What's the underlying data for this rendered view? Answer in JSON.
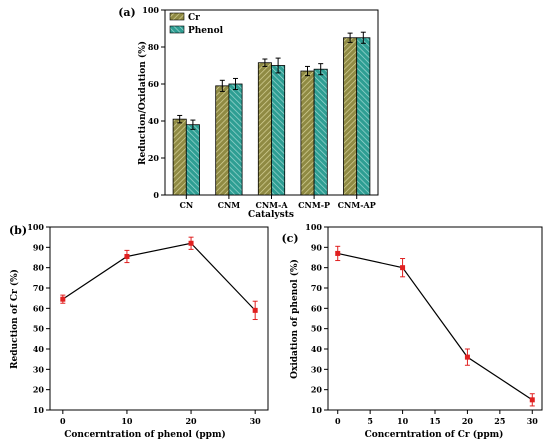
{
  "colors": {
    "cr_bar": "#8f8a43",
    "phenol_bar": "#2e9e93",
    "line": "#000000",
    "marker": "#e02020",
    "errorbar": "#e02020"
  },
  "chart_data": [
    {
      "type": "bar",
      "panel_label": "(a)",
      "categories": [
        "CN",
        "CNM",
        "CNM-A",
        "CNM-P",
        "CNM-AP"
      ],
      "series": [
        {
          "name": "Cr",
          "values": [
            41,
            59,
            71.5,
            67,
            85
          ],
          "errors": [
            2,
            3,
            2,
            2.5,
            2.5
          ]
        },
        {
          "name": "Phenol",
          "values": [
            38,
            60,
            70,
            68,
            85
          ],
          "errors": [
            2.5,
            3,
            4,
            3,
            3
          ]
        }
      ],
      "xlabel": "Catalysts",
      "ylabel": "Reduction/Oxidation (%)",
      "ylim": [
        0,
        100
      ],
      "yticks": [
        "0",
        "20",
        "40",
        "60",
        "80",
        "100"
      ],
      "legend_position": "top-left",
      "grid": false
    },
    {
      "type": "line",
      "panel_label": "(b)",
      "x": [
        0,
        10,
        20,
        30
      ],
      "y": [
        64.5,
        85.5,
        92,
        59
      ],
      "errors": [
        2,
        3,
        3,
        4.5
      ],
      "xlabel": "Concerntration of phenol (ppm)",
      "ylabel": "Reduction of Cr (%)",
      "xlim": [
        -2,
        32
      ],
      "ylim": [
        10,
        100
      ],
      "xticks": [
        "0",
        "10",
        "20",
        "30"
      ],
      "yticks": [
        "10",
        "20",
        "30",
        "40",
        "50",
        "60",
        "70",
        "80",
        "90",
        "100"
      ],
      "grid": false
    },
    {
      "type": "line",
      "panel_label": "(c)",
      "x": [
        0,
        10,
        20,
        30
      ],
      "y": [
        87,
        80,
        36,
        15
      ],
      "errors": [
        3.5,
        4.5,
        4,
        3
      ],
      "xlabel": "Concerntration of Cr (ppm)",
      "ylabel": "Oxidation of phenol (%)",
      "xlim": [
        -1.5,
        31.5
      ],
      "ylim": [
        10,
        100
      ],
      "xticks": [
        "0",
        "5",
        "10",
        "15",
        "20",
        "25",
        "30"
      ],
      "yticks": [
        "10",
        "20",
        "30",
        "40",
        "50",
        "60",
        "70",
        "80",
        "90",
        "100"
      ],
      "grid": false
    }
  ]
}
